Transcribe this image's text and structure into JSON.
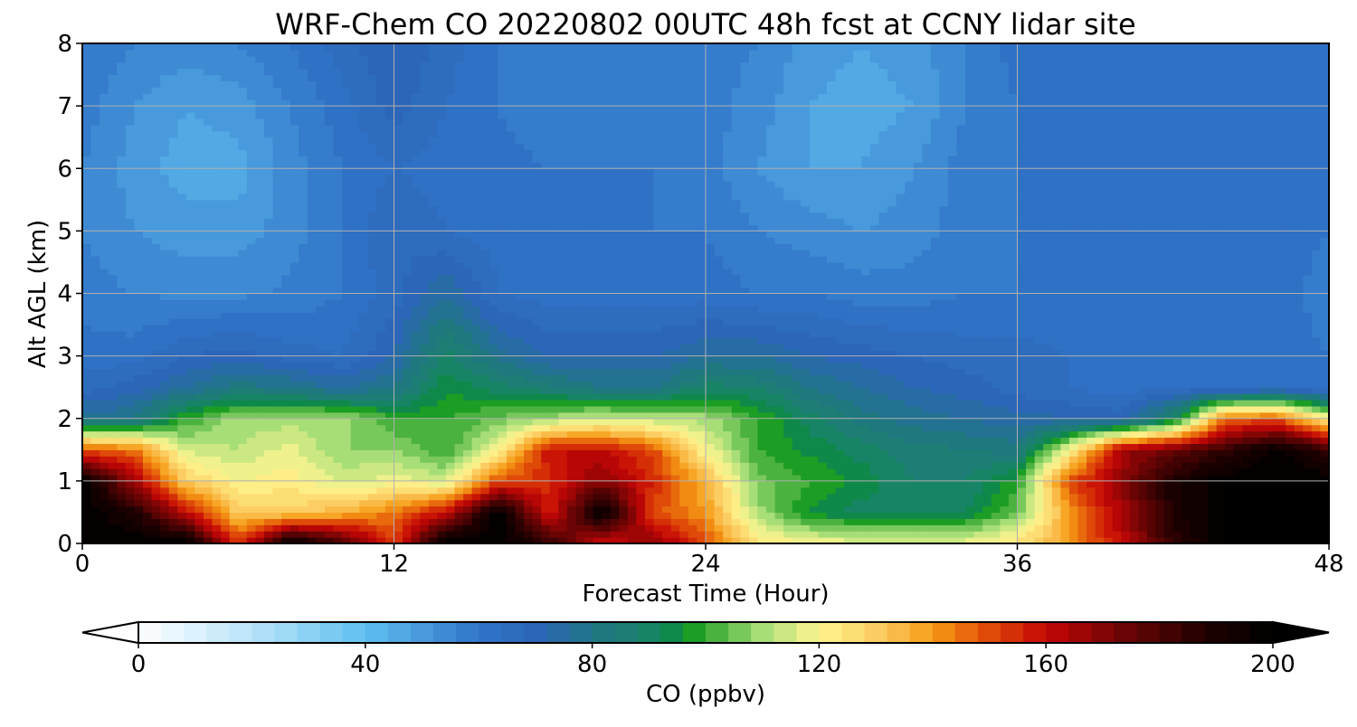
{
  "chart_data": {
    "type": "heatmap",
    "title": "WRF-Chem CO  20220802 00UTC 48h fcst at CCNY lidar site",
    "xlabel": "Forecast Time (Hour)",
    "ylabel": "Alt AGL (km)",
    "xlim": [
      0,
      48
    ],
    "ylim": [
      0,
      8
    ],
    "x_ticks": [
      "0",
      "12",
      "24",
      "36",
      "48"
    ],
    "y_ticks": [
      "0",
      "1",
      "2",
      "3",
      "4",
      "5",
      "6",
      "7",
      "8"
    ],
    "grid": true,
    "x": [
      0,
      2,
      4,
      6,
      8,
      10,
      12,
      14,
      16,
      18,
      20,
      22,
      24,
      26,
      28,
      30,
      32,
      34,
      36,
      38,
      40,
      42,
      44,
      46,
      48
    ],
    "y": [
      0,
      0.5,
      1,
      1.5,
      2,
      2.5,
      3,
      4,
      5,
      6,
      7,
      8
    ],
    "z": [
      [
        200,
        200,
        200,
        152,
        200,
        182,
        152,
        200,
        200,
        185,
        155,
        170,
        150,
        125,
        120,
        118,
        118,
        118,
        125,
        140,
        160,
        185,
        200,
        200,
        200
      ],
      [
        200,
        190,
        160,
        130,
        130,
        135,
        145,
        160,
        200,
        155,
        200,
        150,
        140,
        110,
        95,
        90,
        90,
        92,
        105,
        140,
        165,
        190,
        200,
        200,
        200
      ],
      [
        200,
        165,
        130,
        120,
        122,
        115,
        118,
        115,
        150,
        155,
        170,
        155,
        135,
        105,
        100,
        95,
        88,
        88,
        98,
        150,
        168,
        190,
        200,
        200,
        200
      ],
      [
        150,
        145,
        115,
        112,
        118,
        108,
        108,
        100,
        120,
        160,
        160,
        150,
        120,
        100,
        95,
        90,
        86,
        84,
        82,
        120,
        165,
        175,
        185,
        198,
        185
      ],
      [
        78,
        80,
        100,
        110,
        110,
        110,
        100,
        100,
        105,
        110,
        115,
        112,
        110,
        100,
        90,
        82,
        78,
        76,
        74,
        72,
        70,
        90,
        145,
        150,
        120
      ],
      [
        66,
        70,
        76,
        82,
        80,
        75,
        80,
        95,
        90,
        85,
        80,
        80,
        90,
        88,
        80,
        76,
        72,
        70,
        66,
        64,
        62,
        64,
        62,
        64,
        60
      ],
      [
        62,
        62,
        68,
        70,
        66,
        64,
        72,
        90,
        78,
        72,
        72,
        72,
        76,
        76,
        72,
        70,
        68,
        66,
        66,
        64,
        62,
        64,
        64,
        62,
        60
      ],
      [
        58,
        56,
        55,
        55,
        57,
        60,
        66,
        76,
        64,
        62,
        62,
        62,
        62,
        60,
        60,
        58,
        58,
        60,
        60,
        60,
        62,
        62,
        62,
        62,
        58
      ],
      [
        56,
        52,
        50,
        50,
        54,
        60,
        68,
        64,
        62,
        62,
        62,
        60,
        60,
        56,
        54,
        52,
        54,
        58,
        60,
        62,
        62,
        62,
        62,
        62,
        60
      ],
      [
        56,
        50,
        46,
        46,
        54,
        60,
        64,
        62,
        62,
        60,
        60,
        60,
        58,
        52,
        48,
        48,
        52,
        58,
        60,
        62,
        62,
        62,
        62,
        63,
        62
      ],
      [
        58,
        52,
        48,
        50,
        56,
        62,
        70,
        64,
        60,
        56,
        58,
        60,
        58,
        54,
        48,
        46,
        48,
        56,
        60,
        62,
        64,
        62,
        62,
        62,
        60
      ],
      [
        60,
        56,
        54,
        56,
        60,
        66,
        72,
        66,
        60,
        58,
        58,
        58,
        58,
        56,
        50,
        48,
        50,
        56,
        62,
        62,
        62,
        62,
        62,
        62,
        62
      ]
    ],
    "colorbar": {
      "label": "CO  (ppbv)",
      "min": 0,
      "max": 200,
      "ticks": [
        "0",
        "40",
        "80",
        "120",
        "160",
        "200"
      ],
      "extend": "both"
    },
    "colormap_stops": [
      [
        0,
        "#ffffff"
      ],
      [
        0.1,
        "#b8e4f8"
      ],
      [
        0.2,
        "#60bff0"
      ],
      [
        0.3,
        "#3074c8"
      ],
      [
        0.35,
        "#2c66b8"
      ],
      [
        0.42,
        "#1d7b74"
      ],
      [
        0.4375,
        "#1e8078"
      ],
      [
        0.48,
        "#0a8c3c"
      ],
      [
        0.4875,
        "#169a20"
      ],
      [
        0.55,
        "#a8de78"
      ],
      [
        0.6,
        "#fff691"
      ],
      [
        0.66,
        "#fbc558"
      ],
      [
        0.7,
        "#f59b14"
      ],
      [
        0.75,
        "#df4a08"
      ],
      [
        0.8,
        "#c50606"
      ],
      [
        0.87,
        "#6a0404"
      ],
      [
        0.94,
        "#200000"
      ],
      [
        1,
        "#000000"
      ]
    ],
    "under_color": "#ffffff",
    "over_color": "#000000"
  }
}
